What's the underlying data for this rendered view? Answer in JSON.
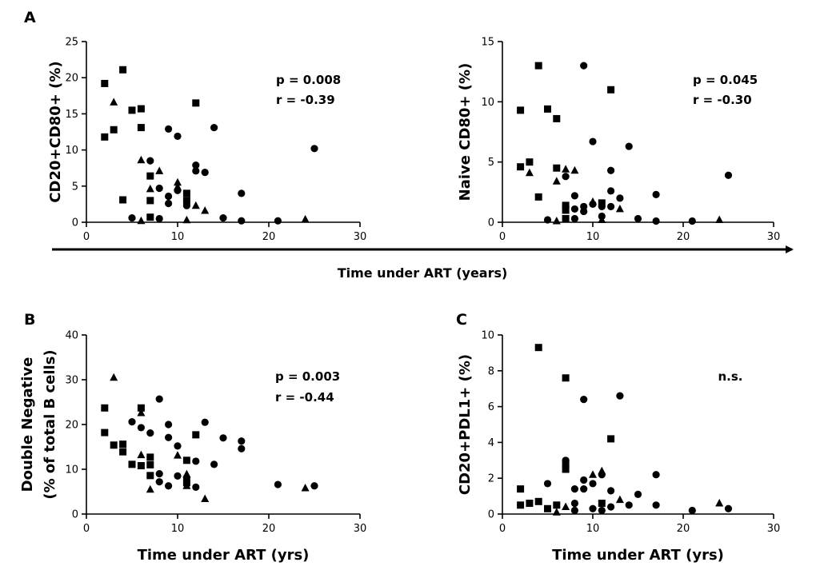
{
  "figure": {
    "shared_axis_label": "Time under ART (years)",
    "marker_color": "#000000"
  },
  "chart_data": [
    {
      "panel": "A",
      "type": "scatter",
      "title": "",
      "xlabel": "",
      "ylabel": "CD20+CD80+ (%)",
      "xlim": [
        0,
        30
      ],
      "ylim": [
        0,
        25
      ],
      "xticks": [
        0,
        10,
        20,
        30
      ],
      "yticks": [
        0,
        5,
        10,
        15,
        20,
        25
      ],
      "stats": [
        "p = 0.008",
        "r = -0.39"
      ],
      "series": [
        {
          "name": "square",
          "points": [
            [
              2,
              19.2
            ],
            [
              2,
              11.8
            ],
            [
              3,
              12.8
            ],
            [
              4,
              21.1
            ],
            [
              4,
              3.1
            ],
            [
              5,
              15.5
            ],
            [
              6,
              15.7
            ],
            [
              6,
              13.1
            ],
            [
              7,
              6.4
            ],
            [
              7,
              3.0
            ],
            [
              7,
              0.7
            ],
            [
              11,
              4.0
            ],
            [
              11,
              3.0
            ],
            [
              12,
              16.5
            ]
          ]
        },
        {
          "name": "triangle",
          "points": [
            [
              3,
              16.6
            ],
            [
              6,
              8.6
            ],
            [
              6,
              0.2
            ],
            [
              7,
              4.6
            ],
            [
              8,
              7.1
            ],
            [
              10,
              5.5
            ],
            [
              10,
              4.9
            ],
            [
              11,
              0.3
            ],
            [
              12,
              2.3
            ],
            [
              13,
              1.6
            ],
            [
              24,
              0.4
            ]
          ]
        },
        {
          "name": "circle",
          "points": [
            [
              5,
              0.6
            ],
            [
              7,
              8.5
            ],
            [
              8,
              4.7
            ],
            [
              8,
              0.5
            ],
            [
              9,
              12.9
            ],
            [
              9,
              3.6
            ],
            [
              9,
              2.6
            ],
            [
              10,
              11.9
            ],
            [
              10,
              4.4
            ],
            [
              11,
              2.3
            ],
            [
              12,
              7.9
            ],
            [
              12,
              7.1
            ],
            [
              13,
              6.9
            ],
            [
              14,
              13.1
            ],
            [
              15,
              0.6
            ],
            [
              17,
              4.0
            ],
            [
              17,
              0.2
            ],
            [
              21,
              0.2
            ],
            [
              25,
              10.2
            ]
          ]
        }
      ]
    },
    {
      "panel": "A2",
      "type": "scatter",
      "title": "",
      "xlabel": "",
      "ylabel": "Naive CD80+ (%)",
      "xlim": [
        0,
        30
      ],
      "ylim": [
        0,
        15
      ],
      "xticks": [
        0,
        10,
        20,
        30
      ],
      "yticks": [
        0,
        5,
        10,
        15
      ],
      "stats": [
        "p = 0.045",
        "r = -0.30"
      ],
      "series": [
        {
          "name": "square",
          "points": [
            [
              2,
              9.3
            ],
            [
              2,
              4.6
            ],
            [
              3,
              5.0
            ],
            [
              4,
              13.0
            ],
            [
              4,
              2.1
            ],
            [
              5,
              9.4
            ],
            [
              6,
              8.6
            ],
            [
              6,
              4.5
            ],
            [
              7,
              1.4
            ],
            [
              7,
              1.0
            ],
            [
              7,
              0.3
            ],
            [
              11,
              1.6
            ],
            [
              12,
              11.0
            ]
          ]
        },
        {
          "name": "triangle",
          "points": [
            [
              3,
              4.1
            ],
            [
              6,
              3.4
            ],
            [
              6,
              0.1
            ],
            [
              7,
              4.4
            ],
            [
              8,
              4.3
            ],
            [
              10,
              1.7
            ],
            [
              11,
              0.2
            ],
            [
              13,
              1.1
            ],
            [
              24,
              0.2
            ]
          ]
        },
        {
          "name": "circle",
          "points": [
            [
              5,
              0.2
            ],
            [
              7,
              3.8
            ],
            [
              7,
              1.3
            ],
            [
              8,
              2.2
            ],
            [
              8,
              1.1
            ],
            [
              8,
              0.3
            ],
            [
              9,
              13.0
            ],
            [
              9,
              1.3
            ],
            [
              9,
              0.9
            ],
            [
              10,
              6.7
            ],
            [
              10,
              1.5
            ],
            [
              11,
              1.3
            ],
            [
              11,
              0.5
            ],
            [
              12,
              4.3
            ],
            [
              12,
              2.6
            ],
            [
              12,
              1.3
            ],
            [
              13,
              2.0
            ],
            [
              14,
              6.3
            ],
            [
              15,
              0.3
            ],
            [
              17,
              2.3
            ],
            [
              17,
              0.1
            ],
            [
              21,
              0.1
            ],
            [
              25,
              3.9
            ]
          ]
        }
      ]
    },
    {
      "panel": "B",
      "type": "scatter",
      "title": "",
      "xlabel": "Time under ART (yrs)",
      "ylabel": "Double Negative (% of total B cells)",
      "ylabel_lines": [
        "Double Negative",
        "(% of total B cells)"
      ],
      "xlim": [
        0,
        30
      ],
      "ylim": [
        0,
        40
      ],
      "xticks": [
        0,
        10,
        20,
        30
      ],
      "yticks": [
        0,
        10,
        20,
        30,
        40
      ],
      "stats": [
        "p = 0.003",
        "r = -0.44"
      ],
      "series": [
        {
          "name": "square",
          "points": [
            [
              2,
              23.7
            ],
            [
              2,
              18.2
            ],
            [
              3,
              15.4
            ],
            [
              4,
              15.6
            ],
            [
              4,
              13.9
            ],
            [
              5,
              11.1
            ],
            [
              6,
              23.7
            ],
            [
              6,
              10.8
            ],
            [
              7,
              12.7
            ],
            [
              7,
              11.0
            ],
            [
              7,
              8.6
            ],
            [
              11,
              12.0
            ],
            [
              11,
              7.0
            ],
            [
              12,
              17.7
            ]
          ]
        },
        {
          "name": "triangle",
          "points": [
            [
              3,
              30.5
            ],
            [
              6,
              22.6
            ],
            [
              6,
              13.2
            ],
            [
              7,
              5.5
            ],
            [
              10,
              13.1
            ],
            [
              11,
              8.9
            ],
            [
              11,
              6.3
            ],
            [
              13,
              3.4
            ],
            [
              24,
              5.8
            ]
          ]
        },
        {
          "name": "circle",
          "points": [
            [
              5,
              20.6
            ],
            [
              6,
              19.3
            ],
            [
              7,
              18.1
            ],
            [
              8,
              25.7
            ],
            [
              8,
              9.0
            ],
            [
              8,
              7.2
            ],
            [
              9,
              20.0
            ],
            [
              9,
              17.1
            ],
            [
              9,
              6.3
            ],
            [
              10,
              15.2
            ],
            [
              10,
              8.5
            ],
            [
              11,
              8.1
            ],
            [
              12,
              11.8
            ],
            [
              12,
              6.0
            ],
            [
              13,
              20.5
            ],
            [
              14,
              11.1
            ],
            [
              15,
              17.0
            ],
            [
              17,
              16.3
            ],
            [
              17,
              14.6
            ],
            [
              21,
              6.6
            ],
            [
              25,
              6.3
            ]
          ]
        }
      ]
    },
    {
      "panel": "C",
      "type": "scatter",
      "title": "",
      "xlabel": "Time under ART (yrs)",
      "ylabel": "CD20+PDL1+ (%)",
      "xlim": [
        0,
        30
      ],
      "ylim": [
        0,
        10
      ],
      "xticks": [
        0,
        10,
        20,
        30
      ],
      "yticks": [
        0,
        2,
        4,
        6,
        8,
        10
      ],
      "stats": [
        "n.s."
      ],
      "series": [
        {
          "name": "square",
          "points": [
            [
              2,
              1.4
            ],
            [
              2,
              0.5
            ],
            [
              3,
              0.6
            ],
            [
              4,
              9.3
            ],
            [
              4,
              0.7
            ],
            [
              5,
              0.3
            ],
            [
              6,
              0.5
            ],
            [
              7,
              7.6
            ],
            [
              7,
              2.8
            ],
            [
              7,
              2.5
            ],
            [
              11,
              0.6
            ],
            [
              12,
              4.2
            ]
          ]
        },
        {
          "name": "triangle",
          "points": [
            [
              6,
              0.1
            ],
            [
              7,
              0.4
            ],
            [
              10,
              2.2
            ],
            [
              11,
              2.4
            ],
            [
              13,
              0.8
            ],
            [
              24,
              0.6
            ]
          ]
        },
        {
          "name": "circle",
          "points": [
            [
              5,
              1.7
            ],
            [
              7,
              3.0
            ],
            [
              8,
              1.4
            ],
            [
              8,
              0.6
            ],
            [
              8,
              0.2
            ],
            [
              9,
              6.4
            ],
            [
              9,
              1.9
            ],
            [
              9,
              1.4
            ],
            [
              10,
              1.7
            ],
            [
              10,
              0.3
            ],
            [
              11,
              2.2
            ],
            [
              11,
              0.2
            ],
            [
              12,
              1.3
            ],
            [
              12,
              0.4
            ],
            [
              13,
              6.6
            ],
            [
              14,
              0.5
            ],
            [
              15,
              1.1
            ],
            [
              17,
              2.2
            ],
            [
              17,
              0.5
            ],
            [
              21,
              0.2
            ],
            [
              25,
              0.3
            ]
          ]
        }
      ]
    }
  ]
}
